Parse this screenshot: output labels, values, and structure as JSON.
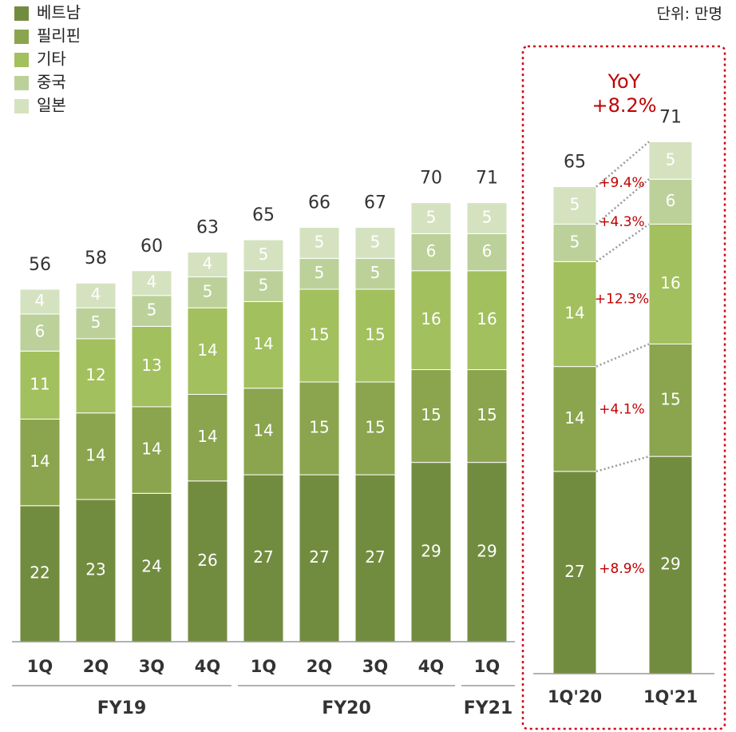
{
  "unit_label": "단위: 만명",
  "chart_data": [
    {
      "type": "bar",
      "stacked": true,
      "categories": [
        "1Q",
        "2Q",
        "3Q",
        "4Q",
        "1Q",
        "2Q",
        "3Q",
        "4Q",
        "1Q"
      ],
      "groups": [
        {
          "label": "FY19",
          "count": 4
        },
        {
          "label": "FY20",
          "count": 4
        },
        {
          "label": "FY21",
          "count": 1
        }
      ],
      "ylim": [
        0,
        80
      ],
      "series": [
        {
          "name": "베트남",
          "color": "#728c3f",
          "values": [
            22,
            23,
            24,
            26,
            27,
            27,
            27,
            29,
            29
          ]
        },
        {
          "name": "필리핀",
          "color": "#8aa54e",
          "values": [
            14,
            14,
            14,
            14,
            14,
            15,
            15,
            15,
            15
          ]
        },
        {
          "name": "기타",
          "color": "#a2c05e",
          "values": [
            11,
            12,
            13,
            14,
            14,
            15,
            15,
            16,
            16
          ]
        },
        {
          "name": "중국",
          "color": "#bcd19a",
          "values": [
            6,
            5,
            5,
            5,
            5,
            5,
            5,
            6,
            6
          ]
        },
        {
          "name": "일본",
          "color": "#d5e2c0",
          "values": [
            4,
            4,
            4,
            4,
            5,
            5,
            5,
            5,
            5
          ]
        }
      ],
      "totals": [
        56,
        58,
        60,
        63,
        65,
        66,
        67,
        70,
        71
      ]
    },
    {
      "type": "bar",
      "stacked": true,
      "categories": [
        "1Q'20",
        "1Q'21"
      ],
      "ylim": [
        0,
        80
      ],
      "title": [
        "YoY",
        "+8.2%"
      ],
      "series": [
        {
          "color": "#728c3f",
          "values": [
            27,
            29
          ],
          "change": "+8.9%"
        },
        {
          "color": "#8aa54e",
          "values": [
            14,
            15
          ],
          "change": "+4.1%"
        },
        {
          "color": "#a2c05e",
          "values": [
            14,
            16
          ],
          "change": "+12.3%"
        },
        {
          "color": "#bcd19a",
          "values": [
            5,
            6
          ],
          "change": "+4.3%"
        },
        {
          "color": "#d5e2c0",
          "values": [
            5,
            5
          ],
          "change": "+9.4%"
        }
      ],
      "totals": [
        65,
        71
      ]
    }
  ]
}
